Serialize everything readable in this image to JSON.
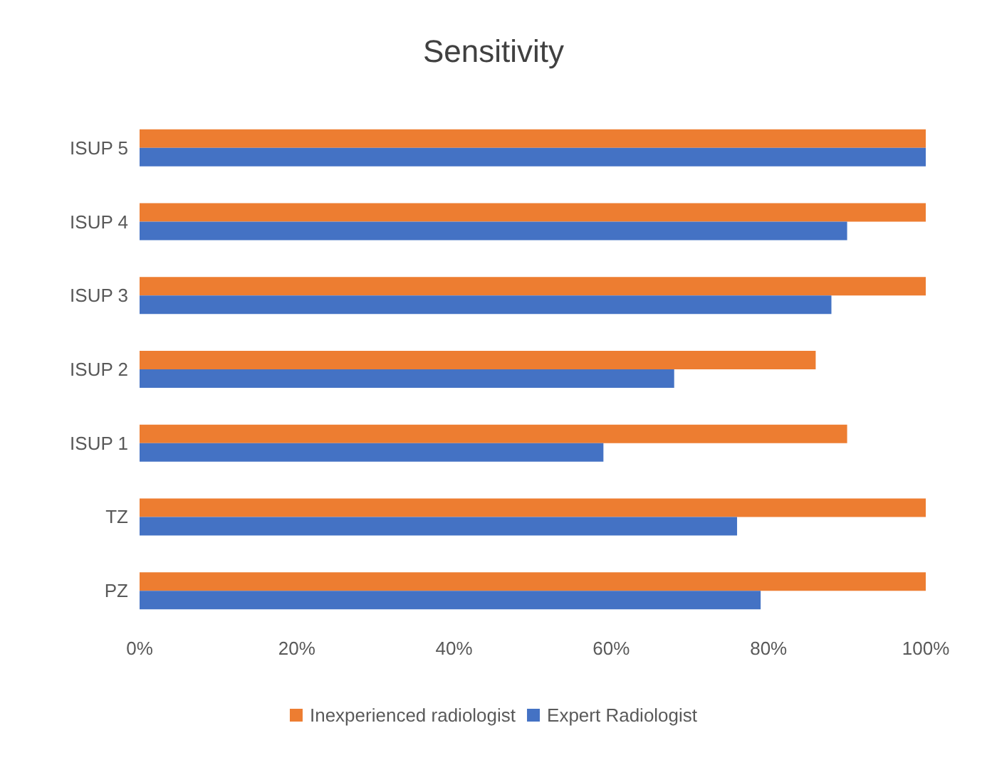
{
  "chart_data": {
    "type": "bar",
    "title": "Sensitivity",
    "orientation": "horizontal",
    "categories": [
      "ISUP 5",
      "ISUP 4",
      "ISUP 3",
      "ISUP 2",
      "ISUP 1",
      "TZ",
      "PZ"
    ],
    "series": [
      {
        "name": "Inexperienced radiologist",
        "color": "#ed7d31",
        "values": [
          100,
          100,
          100,
          86,
          90,
          100,
          100
        ]
      },
      {
        "name": "Expert Radiologist",
        "color": "#4472c4",
        "values": [
          100,
          90,
          88,
          68,
          59,
          76,
          79
        ]
      }
    ],
    "xlim": [
      0,
      100
    ],
    "xticks": [
      {
        "value": 0,
        "label": "0%"
      },
      {
        "value": 20,
        "label": "20%"
      },
      {
        "value": 40,
        "label": "40%"
      },
      {
        "value": 60,
        "label": "60%"
      },
      {
        "value": 80,
        "label": "80%"
      },
      {
        "value": 100,
        "label": "100%"
      }
    ],
    "grid": false,
    "legend": "bottom"
  }
}
